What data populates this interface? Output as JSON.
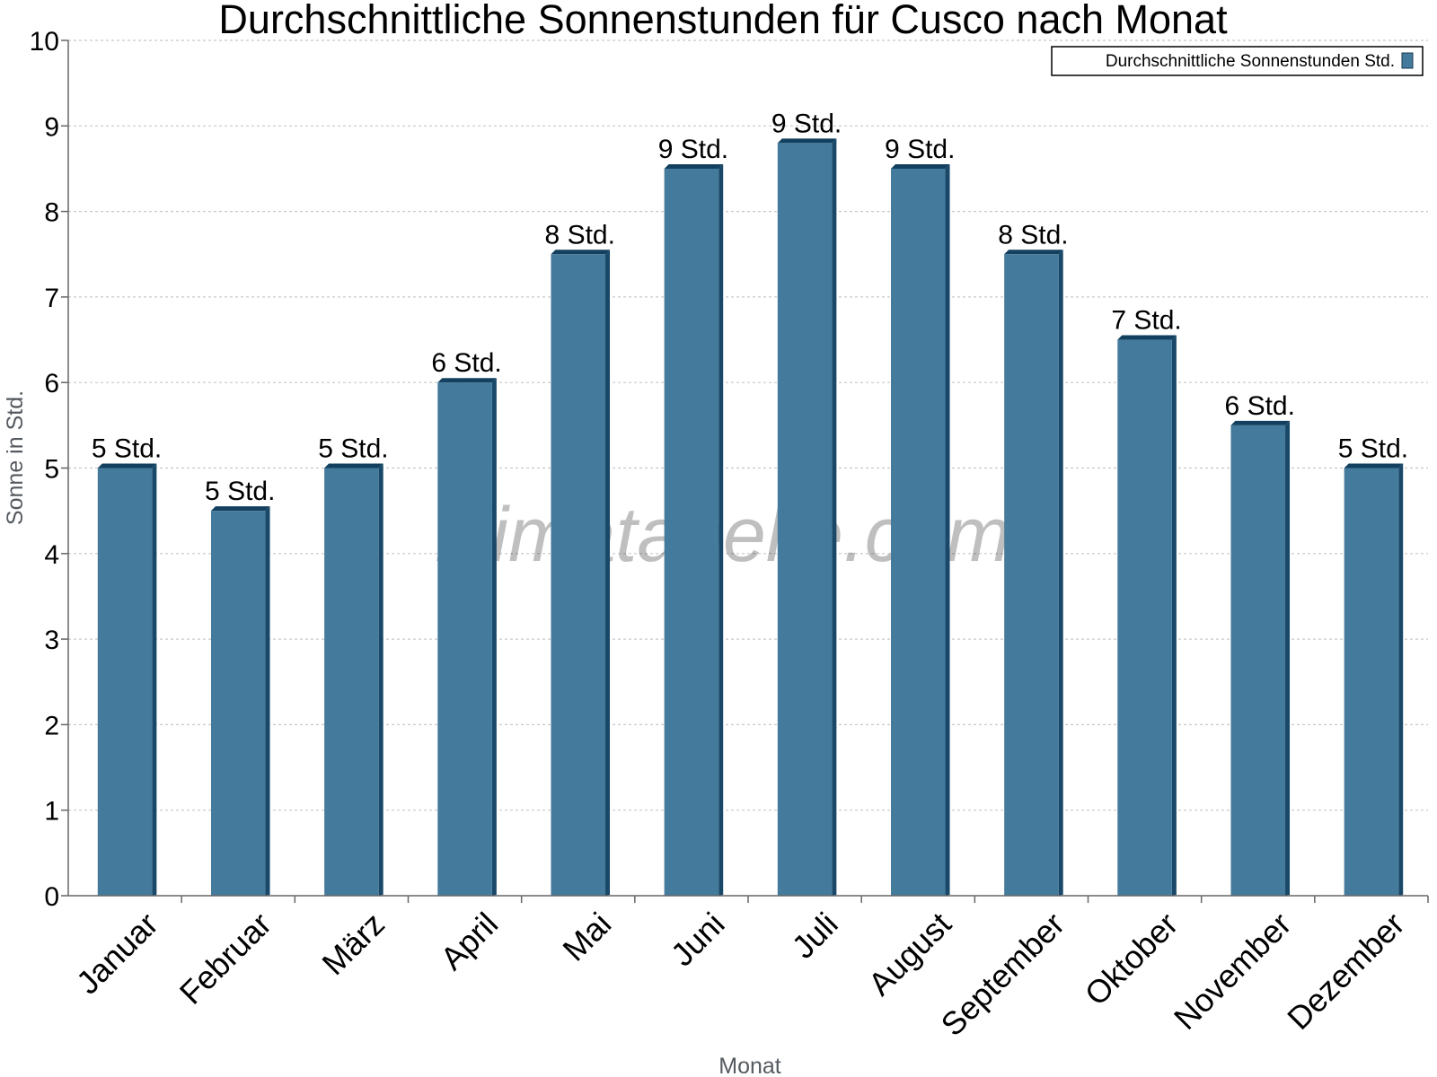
{
  "colors": {
    "bar_face": "#447a9c",
    "bar_side": "#1a4868",
    "bar_top": "#12405e",
    "grid": "#c8c8c8",
    "axis": "#666666",
    "legend_swatch": "#447a9c"
  },
  "watermark": "klimatabelle.com",
  "chart_data": {
    "type": "bar",
    "title": "Durchschnittliche Sonnenstunden für Cusco nach Monat",
    "xlabel": "Monat",
    "ylabel": "Sonne in Std.",
    "ylim": [
      0,
      10
    ],
    "yticks": [
      "0",
      "1",
      "2",
      "3",
      "4",
      "5",
      "6",
      "7",
      "8",
      "9",
      "10"
    ],
    "grid": true,
    "legend_position": "top-right",
    "categories": [
      "Januar",
      "Februar",
      "März",
      "April",
      "Mai",
      "Juni",
      "Juli",
      "August",
      "September",
      "Oktober",
      "November",
      "Dezember"
    ],
    "series": [
      {
        "name": "Durchschnittliche Sonnenstunden Std.",
        "values": [
          5.0,
          4.5,
          5.0,
          6.0,
          7.5,
          8.5,
          8.8,
          8.5,
          7.5,
          6.5,
          5.5,
          5.0
        ],
        "labels": [
          "5 Std.",
          "5 Std.",
          "5 Std.",
          "6 Std.",
          "8 Std.",
          "9 Std.",
          "9 Std.",
          "9 Std.",
          "8 Std.",
          "7 Std.",
          "6 Std.",
          "5 Std."
        ]
      }
    ]
  }
}
